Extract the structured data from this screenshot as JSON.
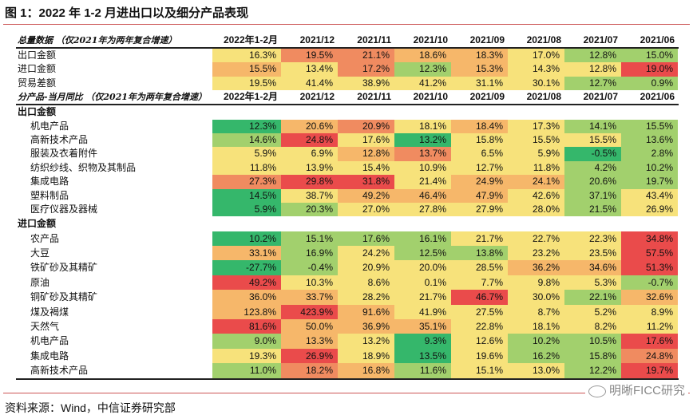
{
  "title": "图 1：2022 年 1-2 月进出口以及细分产品表现",
  "source": "资料来源：Wind，中信证券研究部",
  "watermark": "明晰FICC研究",
  "chart_data": {
    "type": "heatmap",
    "palette": [
      "#35b76b",
      "#a2d06d",
      "#f7e27b",
      "#f6b76a",
      "#f08b60",
      "#ea4b4b"
    ],
    "columns": [
      "2022年1-2月",
      "2021/12",
      "2021/11",
      "2021/10",
      "2021/09",
      "2021/08",
      "2021/07",
      "2021/06"
    ],
    "blocks": [
      {
        "header": "总量数据 （仅2021年为两年复合增速）",
        "sections": [
          {
            "title": "",
            "rows": [
              {
                "label": "出口金额",
                "values": [
                  "16.3%",
                  "19.5%",
                  "21.1%",
                  "18.6%",
                  "18.3%",
                  "17.0%",
                  "12.8%",
                  "15.0%"
                ],
                "levels": [
                  2,
                  4,
                  4,
                  3,
                  3,
                  2,
                  1,
                  1
                ]
              },
              {
                "label": "进口金额",
                "values": [
                  "15.5%",
                  "13.4%",
                  "17.2%",
                  "12.3%",
                  "15.3%",
                  "14.3%",
                  "12.8%",
                  "19.0%"
                ],
                "levels": [
                  3,
                  2,
                  4,
                  1,
                  3,
                  2,
                  2,
                  5
                ]
              },
              {
                "label": "贸易差额",
                "values": [
                  "19.5%",
                  "41.4%",
                  "38.9%",
                  "41.2%",
                  "31.1%",
                  "30.1%",
                  "12.7%",
                  "0.9%"
                ],
                "levels": [
                  2,
                  2,
                  2,
                  2,
                  2,
                  2,
                  1,
                  1
                ]
              }
            ]
          }
        ]
      },
      {
        "header": "分产品-当月同比 （仅2021年为两年复合增速）",
        "sections": [
          {
            "title": "出口金额",
            "rows": [
              {
                "label": "机电产品",
                "values": [
                  "12.3%",
                  "20.6%",
                  "20.9%",
                  "18.1%",
                  "18.4%",
                  "17.3%",
                  "14.1%",
                  "15.5%"
                ],
                "levels": [
                  0,
                  3,
                  4,
                  2,
                  3,
                  2,
                  1,
                  1
                ]
              },
              {
                "label": "高新技术产品",
                "values": [
                  "14.6%",
                  "24.8%",
                  "17.6%",
                  "13.2%",
                  "15.8%",
                  "15.5%",
                  "15.5%",
                  "13.6%"
                ],
                "levels": [
                  1,
                  5,
                  2,
                  0,
                  2,
                  2,
                  2,
                  1
                ]
              },
              {
                "label": "服装及衣着附件",
                "values": [
                  "5.9%",
                  "6.9%",
                  "12.8%",
                  "13.7%",
                  "6.5%",
                  "5.9%",
                  "-0.5%",
                  "2.8%"
                ],
                "levels": [
                  2,
                  2,
                  3,
                  4,
                  2,
                  2,
                  0,
                  1
                ]
              },
              {
                "label": "纺织纱线、织物及其制品",
                "values": [
                  "11.8%",
                  "13.9%",
                  "15.4%",
                  "10.9%",
                  "12.7%",
                  "11.8%",
                  "4.2%",
                  "10.2%"
                ],
                "levels": [
                  2,
                  2,
                  2,
                  2,
                  2,
                  2,
                  1,
                  1
                ]
              },
              {
                "label": "集成电路",
                "values": [
                  "27.3%",
                  "29.8%",
                  "31.8%",
                  "21.4%",
                  "24.9%",
                  "24.1%",
                  "20.6%",
                  "19.7%"
                ],
                "levels": [
                  4,
                  5,
                  5,
                  2,
                  3,
                  3,
                  1,
                  1
                ]
              },
              {
                "label": "塑料制品",
                "values": [
                  "14.5%",
                  "38.7%",
                  "49.2%",
                  "46.4%",
                  "47.9%",
                  "42.6%",
                  "37.1%",
                  "43.4%"
                ],
                "levels": [
                  0,
                  2,
                  3,
                  3,
                  3,
                  2,
                  1,
                  2
                ]
              },
              {
                "label": "医疗仪器及器械",
                "values": [
                  "5.9%",
                  "20.3%",
                  "27.0%",
                  "27.8%",
                  "27.9%",
                  "28.0%",
                  "21.5%",
                  "26.9%"
                ],
                "levels": [
                  0,
                  1,
                  2,
                  2,
                  2,
                  2,
                  1,
                  2
                ]
              }
            ]
          },
          {
            "title": "进口金额",
            "rows": [
              {
                "label": "农产品",
                "values": [
                  "10.2%",
                  "15.1%",
                  "17.6%",
                  "16.1%",
                  "21.7%",
                  "22.7%",
                  "22.3%",
                  "34.8%"
                ],
                "levels": [
                  0,
                  1,
                  1,
                  1,
                  2,
                  2,
                  2,
                  5
                ]
              },
              {
                "label": "大豆",
                "values": [
                  "33.1%",
                  "16.9%",
                  "24.2%",
                  "12.5%",
                  "13.8%",
                  "23.2%",
                  "23.5%",
                  "57.5%"
                ],
                "levels": [
                  3,
                  1,
                  2,
                  1,
                  1,
                  2,
                  2,
                  5
                ]
              },
              {
                "label": "铁矿砂及其精矿",
                "values": [
                  "-27.7%",
                  "-0.4%",
                  "20.9%",
                  "20.0%",
                  "28.5%",
                  "36.2%",
                  "34.6%",
                  "51.3%"
                ],
                "levels": [
                  0,
                  1,
                  2,
                  2,
                  2,
                  3,
                  3,
                  5
                ]
              },
              {
                "label": "原油",
                "values": [
                  "49.2%",
                  "10.3%",
                  "8.6%",
                  "0.1%",
                  "7.7%",
                  "9.8%",
                  "5.3%",
                  "-0.7%"
                ],
                "levels": [
                  5,
                  2,
                  2,
                  2,
                  2,
                  2,
                  2,
                  1
                ]
              },
              {
                "label": "铜矿砂及其精矿",
                "values": [
                  "36.0%",
                  "33.7%",
                  "28.2%",
                  "21.7%",
                  "46.7%",
                  "30.0%",
                  "22.1%",
                  "32.6%"
                ],
                "levels": [
                  3,
                  3,
                  2,
                  2,
                  5,
                  2,
                  1,
                  3
                ]
              },
              {
                "label": "煤及褐煤",
                "values": [
                  "123.8%",
                  "423.9%",
                  "91.6%",
                  "41.9%",
                  "27.5%",
                  "8.7%",
                  "5.2%",
                  "8.9%"
                ],
                "levels": [
                  3,
                  5,
                  3,
                  2,
                  2,
                  2,
                  2,
                  2
                ]
              },
              {
                "label": "天然气",
                "values": [
                  "81.6%",
                  "50.0%",
                  "36.9%",
                  "35.1%",
                  "22.8%",
                  "18.1%",
                  "8.2%",
                  "11.2%"
                ],
                "levels": [
                  5,
                  3,
                  3,
                  3,
                  2,
                  2,
                  2,
                  2
                ]
              },
              {
                "label": "机电产品",
                "values": [
                  "9.0%",
                  "13.3%",
                  "13.2%",
                  "9.3%",
                  "12.6%",
                  "10.2%",
                  "10.5%",
                  "17.6%"
                ],
                "levels": [
                  1,
                  3,
                  2,
                  0,
                  2,
                  1,
                  1,
                  5
                ]
              },
              {
                "label": "集成电路",
                "values": [
                  "19.3%",
                  "26.9%",
                  "18.9%",
                  "13.5%",
                  "19.6%",
                  "16.2%",
                  "15.8%",
                  "24.8%"
                ],
                "levels": [
                  2,
                  5,
                  2,
                  0,
                  2,
                  1,
                  1,
                  4
                ]
              },
              {
                "label": "高新技术产品",
                "values": [
                  "11.0%",
                  "18.2%",
                  "16.8%",
                  "11.6%",
                  "15.1%",
                  "13.0%",
                  "12.2%",
                  "19.7%"
                ],
                "levels": [
                  1,
                  4,
                  3,
                  1,
                  2,
                  2,
                  1,
                  5
                ]
              }
            ]
          }
        ]
      }
    ]
  }
}
